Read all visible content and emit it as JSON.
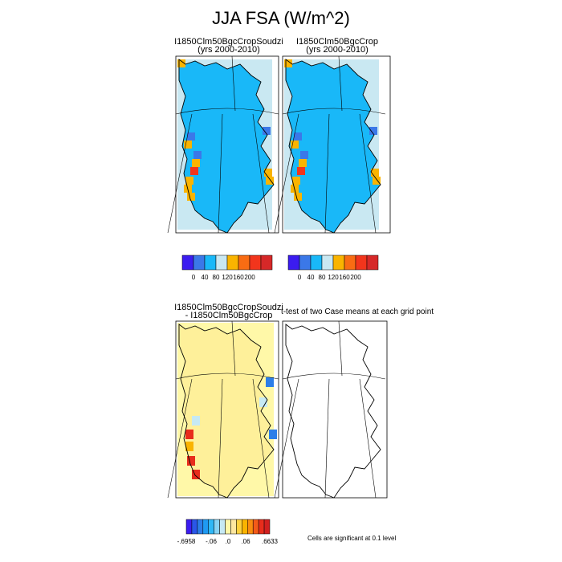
{
  "title": "JJA FSA (W/m^2)",
  "panels": [
    {
      "name": "I1850Clm50BgcCropSoudzi",
      "period": "(yrs 2000-2010)"
    },
    {
      "name": "I1850Clm50BgcCrop",
      "period": "(yrs 2000-2010)"
    },
    {
      "name": "I1850Clm50BgcCropSoudzi",
      "name2": "- I1850Clm50BgcCrop"
    },
    {
      "name": "t-test of two Case means at each grid point"
    }
  ],
  "colorbar_top": {
    "colors": [
      "#3b1cf0",
      "#3b78e8",
      "#19b8f8",
      "#c9e8f2",
      "#fab400",
      "#f96c13",
      "#f2351c",
      "#d62828"
    ],
    "labels": [
      "0",
      "40",
      "80",
      "120",
      "160",
      "200"
    ]
  },
  "colorbar_diff": {
    "colors": [
      "#3b1cf0",
      "#2a56e8",
      "#2c7ee8",
      "#1f9af2",
      "#2fb8f7",
      "#88d3f4",
      "#c6e9f4",
      "#fff8a8",
      "#fde7a0",
      "#fdd13e",
      "#fab400",
      "#f98c10",
      "#f45a18",
      "#e82d1c",
      "#d11f1f"
    ],
    "labels": [
      "-.6958",
      "-.06",
      ".0",
      ".06",
      ".6633"
    ]
  },
  "significance_note": "Cells are significant at 0.1 level",
  "map_colors": {
    "abs_main": "#19b8f8",
    "abs_light": "#c9e8f2",
    "abs_mid": "#3b78e8",
    "abs_warm": "#fab400",
    "abs_hot": "#f2351c",
    "diff_main": "#fff8a8",
    "diff_pale": "#c6e9f4",
    "diff_blue": "#2c7ee8",
    "diff_red": "#e82d1c",
    "diff_orange": "#fab400"
  }
}
